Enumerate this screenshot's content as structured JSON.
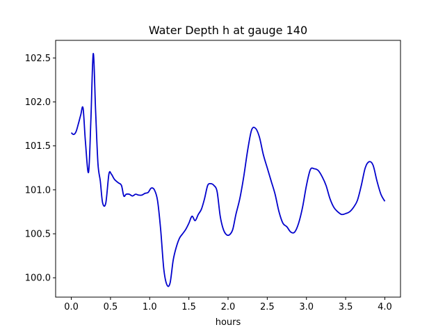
{
  "chart_data": {
    "type": "line",
    "title": "Water Depth h at gauge 140",
    "xlabel": "hours",
    "ylabel": "",
    "xlim": [
      -0.2,
      4.2
    ],
    "ylim": [
      99.78,
      102.7
    ],
    "xticks": [
      0.0,
      0.5,
      1.0,
      1.5,
      2.0,
      2.5,
      3.0,
      3.5,
      4.0
    ],
    "xtick_labels": [
      "0.0",
      "0.5",
      "1.0",
      "1.5",
      "2.0",
      "2.5",
      "3.0",
      "3.5",
      "4.0"
    ],
    "yticks": [
      100.0,
      100.5,
      101.0,
      101.5,
      102.0,
      102.5
    ],
    "ytick_labels": [
      "100.0",
      "100.5",
      "101.0",
      "101.5",
      "102.0",
      "102.5"
    ],
    "grid": false,
    "series": [
      {
        "color": "#0000cc",
        "x": [
          0.0,
          0.03,
          0.06,
          0.09,
          0.12,
          0.15,
          0.18,
          0.22,
          0.25,
          0.28,
          0.31,
          0.34,
          0.37,
          0.4,
          0.44,
          0.48,
          0.51,
          0.55,
          0.6,
          0.64,
          0.67,
          0.7,
          0.74,
          0.78,
          0.82,
          0.86,
          0.9,
          0.94,
          0.98,
          1.02,
          1.06,
          1.1,
          1.14,
          1.18,
          1.22,
          1.26,
          1.3,
          1.34,
          1.38,
          1.42,
          1.46,
          1.5,
          1.54,
          1.58,
          1.62,
          1.66,
          1.7,
          1.74,
          1.78,
          1.82,
          1.86,
          1.9,
          1.94,
          1.98,
          2.02,
          2.06,
          2.1,
          2.15,
          2.2,
          2.25,
          2.3,
          2.35,
          2.4,
          2.45,
          2.5,
          2.55,
          2.6,
          2.65,
          2.7,
          2.75,
          2.8,
          2.85,
          2.9,
          2.95,
          3.0,
          3.05,
          3.1,
          3.15,
          3.2,
          3.25,
          3.3,
          3.35,
          3.4,
          3.45,
          3.5,
          3.55,
          3.6,
          3.65,
          3.7,
          3.75,
          3.8,
          3.85,
          3.9,
          3.95,
          4.0
        ],
        "y": [
          101.65,
          101.63,
          101.66,
          101.75,
          101.85,
          101.93,
          101.55,
          101.2,
          101.8,
          102.55,
          101.9,
          101.3,
          101.1,
          100.85,
          100.85,
          101.18,
          101.18,
          101.12,
          101.08,
          101.05,
          100.93,
          100.95,
          100.95,
          100.93,
          100.95,
          100.94,
          100.94,
          100.96,
          100.97,
          101.02,
          101.0,
          100.88,
          100.55,
          100.1,
          99.92,
          99.94,
          100.2,
          100.35,
          100.45,
          100.5,
          100.55,
          100.62,
          100.7,
          100.65,
          100.72,
          100.78,
          100.9,
          101.05,
          101.07,
          101.05,
          100.98,
          100.7,
          100.55,
          100.49,
          100.49,
          100.55,
          100.72,
          100.9,
          101.15,
          101.45,
          101.68,
          101.7,
          101.6,
          101.4,
          101.25,
          101.1,
          100.95,
          100.75,
          100.62,
          100.58,
          100.52,
          100.52,
          100.62,
          100.8,
          101.05,
          101.23,
          101.24,
          101.22,
          101.15,
          101.05,
          100.9,
          100.8,
          100.75,
          100.72,
          100.73,
          100.75,
          100.8,
          100.88,
          101.05,
          101.25,
          101.32,
          101.28,
          101.1,
          100.95,
          100.87
        ]
      }
    ]
  }
}
